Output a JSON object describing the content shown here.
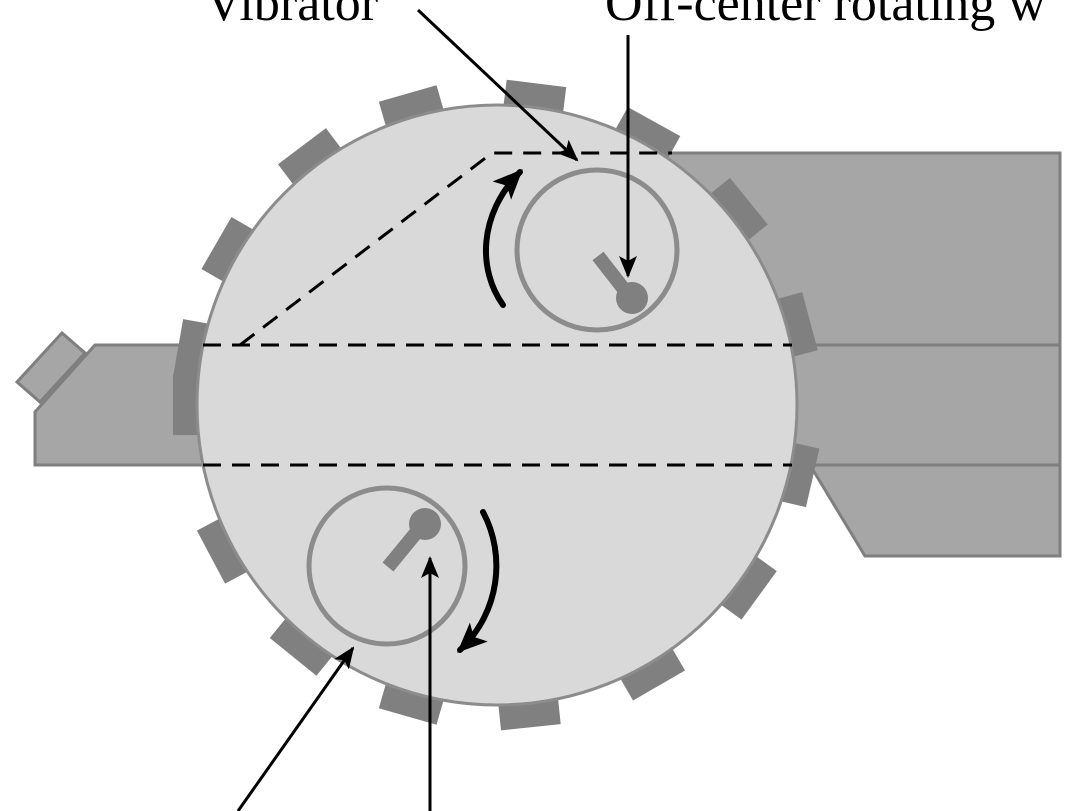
{
  "labels": {
    "top_left": "Vibrator",
    "top_right": "Off-center rotating w"
  },
  "colors": {
    "background": "#ffffff",
    "drum": "#d9d9d9",
    "drum_outline": "#8c8c8c",
    "tooth": "#808080",
    "frame": "#a6a6a6",
    "frame_outline": "#7f7f7f",
    "vibrator_ring": "#8c8c8c",
    "line": "#000000"
  }
}
